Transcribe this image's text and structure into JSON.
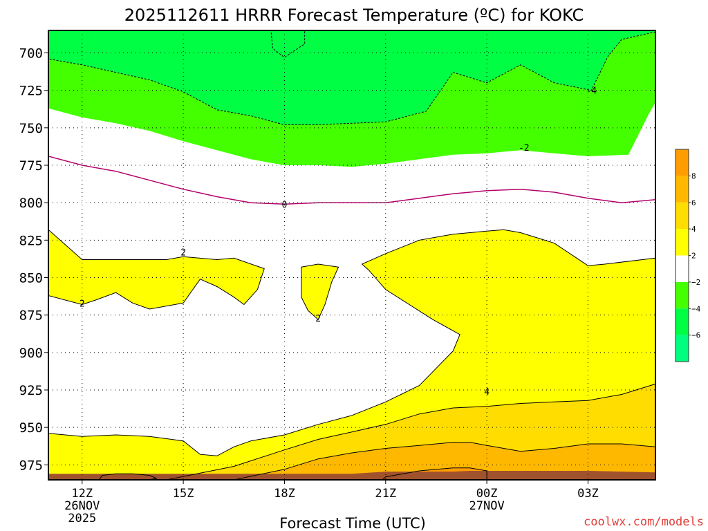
{
  "title": "2025112611 HRRR Forecast Temperature (ºC) for KOKC",
  "xlabel": "Forecast Time (UTC)",
  "credit": "coolwx.com/models",
  "colors": {
    "frame": "#000000",
    "ground": "#a0522d",
    "freezing_line": "#b3006b",
    "neg6_below": "#00ff7f",
    "neg6_neg4": "#00ff44",
    "neg4_neg2": "#44ff00",
    "neg2_2": "#ffffff",
    "2_4": "#ffff00",
    "4_6": "#ffdd00",
    "6_8": "#ffb800",
    "8_above": "#ff9d00"
  },
  "chart_data": {
    "type": "heatmap",
    "title": "2025112611 HRRR Forecast Temperature (ºC) for KOKC",
    "xlabel": "Forecast Time (UTC)",
    "ylabel": "",
    "y_axis": "pressure (hPa), inverted",
    "ylim": [
      985,
      685
    ],
    "xlim": [
      11,
      29
    ],
    "grid": true,
    "y_ticks": [
      "700",
      "725",
      "750",
      "775",
      "800",
      "825",
      "850",
      "875",
      "900",
      "925",
      "950",
      "975"
    ],
    "x_ticks": [
      {
        "label": "12Z",
        "sub1": "26NOV",
        "sub2": "2025",
        "hour": 12
      },
      {
        "label": "15Z",
        "sub1": "",
        "sub2": "",
        "hour": 15
      },
      {
        "label": "18Z",
        "sub1": "",
        "sub2": "",
        "hour": 18
      },
      {
        "label": "21Z",
        "sub1": "",
        "sub2": "",
        "hour": 21
      },
      {
        "label": "00Z",
        "sub1": "27NOV",
        "sub2": "",
        "hour": 24
      },
      {
        "label": "03Z",
        "sub1": "",
        "sub2": "",
        "hour": 27
      }
    ],
    "colorbar": {
      "labels": [
        "8",
        "6",
        "4",
        "2",
        "−2",
        "−4",
        "−6"
      ],
      "bins": [
        {
          "range": "above 8",
          "color": "#ff9d00"
        },
        {
          "range": "6 to 8",
          "color": "#ffb800"
        },
        {
          "range": "4 to 6",
          "color": "#ffdd00"
        },
        {
          "range": "2 to 4",
          "color": "#ffff00"
        },
        {
          "range": "-2 to 2",
          "color": "#ffffff"
        },
        {
          "range": "-4 to -2",
          "color": "#44ff00"
        },
        {
          "range": "-6 to -4",
          "color": "#00ff44"
        },
        {
          "range": "below -6",
          "color": "#00ff7f"
        }
      ]
    },
    "contour_labels": [
      {
        "text": "-4",
        "hour": 27.1,
        "p": 725
      },
      {
        "text": "-2",
        "hour": 25.1,
        "p": 763
      },
      {
        "text": "0",
        "hour": 18.0,
        "p": 801
      },
      {
        "text": "2",
        "hour": 15.0,
        "p": 833
      },
      {
        "text": "2",
        "hour": 12.0,
        "p": 867
      },
      {
        "text": "2",
        "hour": 19.0,
        "p": 877
      },
      {
        "text": "4",
        "hour": 24.0,
        "p": 926
      }
    ],
    "regions": [
      {
        "name": "below -6",
        "fill": "neg6_below",
        "stroke": "dashed",
        "points": [
          [
            17.6,
            685
          ],
          [
            18.6,
            685
          ],
          [
            18.6,
            694
          ],
          [
            18.0,
            703
          ],
          [
            17.65,
            697
          ]
        ]
      },
      {
        "name": "-6 to -4",
        "fill": "neg6_neg4",
        "stroke": "dashed",
        "points": [
          [
            11,
            685
          ],
          [
            29,
            685
          ],
          [
            29,
            686
          ],
          [
            28.0,
            691
          ],
          [
            27.6,
            702
          ],
          [
            27.1,
            725
          ],
          [
            26.0,
            720
          ],
          [
            25.0,
            708
          ],
          [
            24.0,
            720
          ],
          [
            23.0,
            713
          ],
          [
            22.2,
            739
          ],
          [
            21.0,
            746
          ],
          [
            20.0,
            747
          ],
          [
            18.9,
            748
          ],
          [
            18.0,
            748
          ],
          [
            17.0,
            742
          ],
          [
            16.0,
            738
          ],
          [
            15.0,
            726
          ],
          [
            14.0,
            718
          ],
          [
            13.0,
            713
          ],
          [
            12.0,
            708
          ],
          [
            11,
            704
          ]
        ]
      },
      {
        "name": "-4 to -2",
        "fill": "neg4_neg2",
        "stroke": "none",
        "points": [
          [
            11,
            704
          ],
          [
            12.0,
            708
          ],
          [
            13.0,
            713
          ],
          [
            14.0,
            718
          ],
          [
            15.0,
            726
          ],
          [
            16.0,
            738
          ],
          [
            17.0,
            742
          ],
          [
            18.0,
            748
          ],
          [
            18.9,
            748
          ],
          [
            20.0,
            747
          ],
          [
            21.0,
            746
          ],
          [
            22.2,
            739
          ],
          [
            23.0,
            713
          ],
          [
            24.0,
            720
          ],
          [
            25.0,
            708
          ],
          [
            26.0,
            720
          ],
          [
            27.1,
            725
          ],
          [
            27.6,
            702
          ],
          [
            28.0,
            691
          ],
          [
            29,
            686
          ],
          [
            29,
            733
          ],
          [
            28.8,
            741
          ],
          [
            28.2,
            768
          ],
          [
            27.0,
            769
          ],
          [
            26.0,
            767
          ],
          [
            25.0,
            765
          ],
          [
            24.0,
            767
          ],
          [
            23.0,
            768
          ],
          [
            22.0,
            771
          ],
          [
            21.0,
            774
          ],
          [
            20.0,
            776
          ],
          [
            19.0,
            775
          ],
          [
            18.0,
            775
          ],
          [
            17.0,
            771
          ],
          [
            16.0,
            765
          ],
          [
            15.0,
            759
          ],
          [
            14.0,
            752
          ],
          [
            13.0,
            747
          ],
          [
            12.0,
            743
          ],
          [
            11,
            737
          ]
        ]
      },
      {
        "name": "2 to 4",
        "fill": "2_4",
        "stroke": "solid",
        "points": [
          [
            11,
            818
          ],
          [
            12.0,
            838
          ],
          [
            13.0,
            838
          ],
          [
            14.0,
            838
          ],
          [
            14.5,
            838
          ],
          [
            15.0,
            836
          ],
          [
            16.0,
            838
          ],
          [
            16.5,
            837
          ],
          [
            17.4,
            844
          ],
          [
            17.2,
            858
          ],
          [
            16.8,
            868
          ],
          [
            16.5,
            863
          ],
          [
            16.0,
            856
          ],
          [
            15.5,
            851
          ],
          [
            15.0,
            867
          ],
          [
            14.0,
            871
          ],
          [
            13.5,
            867
          ],
          [
            13.0,
            860
          ],
          [
            12.4,
            865
          ],
          [
            12.0,
            868
          ],
          [
            11,
            862
          ],
          [
            11,
            954
          ],
          [
            12.0,
            956
          ],
          [
            13.0,
            955
          ],
          [
            14.0,
            956
          ],
          [
            15.0,
            959
          ],
          [
            15.5,
            968
          ],
          [
            16.0,
            969
          ],
          [
            16.5,
            963
          ],
          [
            17.0,
            959
          ],
          [
            18.0,
            955
          ],
          [
            19.0,
            948
          ],
          [
            20.0,
            942
          ],
          [
            21.0,
            933
          ],
          [
            22.0,
            922
          ],
          [
            23.0,
            899
          ],
          [
            23.2,
            888
          ],
          [
            22.4,
            878
          ],
          [
            21.0,
            858
          ],
          [
            20.5,
            845
          ],
          [
            20.3,
            841
          ],
          [
            21.0,
            834
          ],
          [
            22.0,
            825
          ],
          [
            23.0,
            821
          ],
          [
            24.0,
            819
          ],
          [
            24.5,
            818
          ],
          [
            25.0,
            820
          ],
          [
            26.0,
            827
          ],
          [
            26.8,
            839
          ],
          [
            27.0,
            842
          ],
          [
            27.5,
            841
          ],
          [
            29,
            837
          ],
          [
            29,
            985
          ],
          [
            11,
            985
          ]
        ]
      },
      {
        "name": "2 to 4 island",
        "fill": "2_4",
        "stroke": "solid",
        "points": [
          [
            18.5,
            843
          ],
          [
            19.0,
            841
          ],
          [
            19.6,
            843
          ],
          [
            19.4,
            853
          ],
          [
            19.2,
            868
          ],
          [
            19.0,
            878
          ],
          [
            18.7,
            872
          ],
          [
            18.5,
            863
          ]
        ]
      },
      {
        "name": "4 to 6",
        "fill": "4_6",
        "stroke": "solid",
        "points": [
          [
            11,
            985
          ],
          [
            14.5,
            985
          ],
          [
            16.5,
            976
          ],
          [
            18.0,
            965
          ],
          [
            19.0,
            958
          ],
          [
            20.0,
            953
          ],
          [
            21.0,
            948
          ],
          [
            22.0,
            941
          ],
          [
            23.0,
            937
          ],
          [
            24.0,
            936
          ],
          [
            25.0,
            934
          ],
          [
            26.0,
            933
          ],
          [
            27.0,
            932
          ],
          [
            28.0,
            928
          ],
          [
            29,
            921
          ],
          [
            29,
            985
          ]
        ]
      },
      {
        "name": "6 to 8",
        "fill": "6_8",
        "stroke": "solid",
        "points": [
          [
            16.5,
            985
          ],
          [
            18.0,
            978
          ],
          [
            19.0,
            971
          ],
          [
            20.0,
            967
          ],
          [
            21.0,
            964
          ],
          [
            22.0,
            962
          ],
          [
            23.0,
            960
          ],
          [
            23.5,
            960
          ],
          [
            24.0,
            962
          ],
          [
            25.0,
            966
          ],
          [
            26.0,
            964
          ],
          [
            27.0,
            961
          ],
          [
            28.0,
            961
          ],
          [
            29,
            963
          ],
          [
            29,
            985
          ]
        ]
      },
      {
        "name": "above 8",
        "fill": "8_above",
        "stroke": "solid",
        "points": [
          [
            20.9,
            985
          ],
          [
            21.0,
            983
          ],
          [
            22.0,
            979
          ],
          [
            23.0,
            977
          ],
          [
            23.5,
            977
          ],
          [
            24.0,
            979
          ],
          [
            24.0,
            985
          ]
        ]
      },
      {
        "name": "white pocket low",
        "fill": "neg2_2",
        "stroke": "solid",
        "points": [
          [
            12.5,
            985
          ],
          [
            12.6,
            982
          ],
          [
            13.0,
            981
          ],
          [
            13.5,
            981
          ],
          [
            14.0,
            982
          ],
          [
            14.2,
            984
          ],
          [
            14.0,
            985
          ]
        ]
      }
    ],
    "freezing_line": [
      [
        11,
        769
      ],
      [
        12.0,
        775
      ],
      [
        13.0,
        779
      ],
      [
        14.0,
        785
      ],
      [
        15.0,
        791
      ],
      [
        16.0,
        796
      ],
      [
        17.0,
        800
      ],
      [
        18.0,
        801
      ],
      [
        19.0,
        800
      ],
      [
        20.0,
        800
      ],
      [
        21.0,
        800
      ],
      [
        22.0,
        797
      ],
      [
        23.0,
        794
      ],
      [
        24.0,
        792
      ],
      [
        25.0,
        791
      ],
      [
        26.0,
        793
      ],
      [
        27.0,
        797
      ],
      [
        28.0,
        800
      ],
      [
        29,
        798
      ]
    ],
    "ground": [
      [
        11,
        981
      ],
      [
        20.0,
        981
      ],
      [
        21.0,
        979.5
      ],
      [
        22.0,
        979.5
      ],
      [
        23.0,
        979.5
      ],
      [
        23.5,
        979
      ],
      [
        24.0,
        979
      ],
      [
        25.0,
        979
      ],
      [
        26.0,
        979
      ],
      [
        27.0,
        979
      ],
      [
        28.0,
        979.5
      ],
      [
        29,
        980
      ],
      [
        29,
        985
      ],
      [
        11,
        985
      ]
    ]
  }
}
